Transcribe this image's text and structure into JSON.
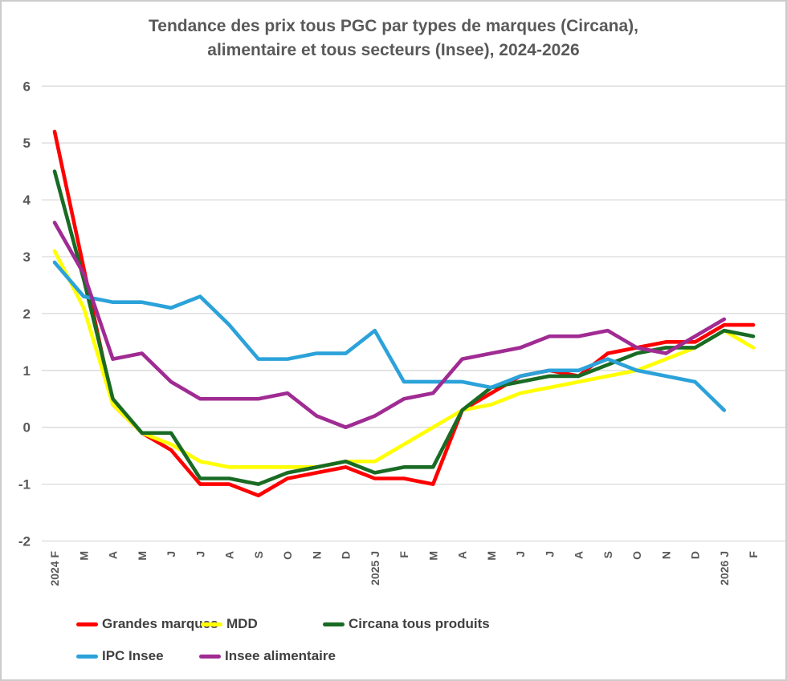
{
  "title": {
    "line1": "Tendance des prix tous PGC par types de marques (Circana),",
    "line2": "alimentaire et tous secteurs (Insee), 2024-2026"
  },
  "chart_data": {
    "type": "line",
    "x_labels": [
      "2024 F",
      "M",
      "A",
      "M",
      "J",
      "J",
      "A",
      "S",
      "O",
      "N",
      "D",
      "2025 J",
      "F",
      "M",
      "A",
      "M",
      "J",
      "J",
      "A",
      "S",
      "O",
      "N",
      "D",
      "2026 J",
      "F"
    ],
    "y_ticks": [
      6,
      5,
      4,
      3,
      2,
      1,
      0,
      -1,
      -2
    ],
    "ylim": [
      -2,
      6
    ],
    "grid": true,
    "legend_position": "bottom",
    "series": [
      {
        "name": "Grandes marques",
        "color": "#FF0000",
        "values": [
          5.2,
          2.8,
          0.4,
          -0.1,
          -0.4,
          -1.0,
          -1.0,
          -1.2,
          -0.9,
          -0.8,
          -0.7,
          -0.9,
          -0.9,
          -1.0,
          0.3,
          0.6,
          0.9,
          1.0,
          0.9,
          1.3,
          1.4,
          1.5,
          1.5,
          1.8,
          1.8
        ]
      },
      {
        "name": "MDD",
        "color": "#FFFF00",
        "values": [
          3.1,
          2.1,
          0.4,
          -0.1,
          -0.3,
          -0.6,
          -0.7,
          -0.7,
          -0.7,
          -0.7,
          -0.6,
          -0.6,
          -0.3,
          0.0,
          0.3,
          0.4,
          0.6,
          0.7,
          0.8,
          0.9,
          1.0,
          1.2,
          1.4,
          1.7,
          1.4
        ]
      },
      {
        "name": "Circana tous produits",
        "color": "#196B24",
        "values": [
          4.5,
          2.6,
          0.5,
          -0.1,
          -0.1,
          -0.9,
          -0.9,
          -1.0,
          -0.8,
          -0.7,
          -0.6,
          -0.8,
          -0.7,
          -0.7,
          0.3,
          0.7,
          0.8,
          0.9,
          0.9,
          1.1,
          1.3,
          1.4,
          1.4,
          1.7,
          1.6
        ]
      },
      {
        "name": "IPC Insee",
        "color": "#2BA2D9",
        "values": [
          2.9,
          2.3,
          2.2,
          2.2,
          2.1,
          2.3,
          1.8,
          1.2,
          1.2,
          1.3,
          1.3,
          1.7,
          0.8,
          0.8,
          0.8,
          0.7,
          0.9,
          1.0,
          1.0,
          1.2,
          1.0,
          0.9,
          0.8,
          0.3,
          null
        ]
      },
      {
        "name": "Insee alimentaire",
        "color": "#A02B93",
        "values": [
          3.6,
          2.7,
          1.2,
          1.3,
          0.8,
          0.5,
          0.5,
          0.5,
          0.6,
          0.2,
          0.0,
          0.2,
          0.5,
          0.6,
          1.2,
          1.3,
          1.4,
          1.6,
          1.6,
          1.7,
          1.4,
          1.3,
          1.6,
          1.9,
          null
        ]
      }
    ]
  },
  "styles": {
    "axis_text_color": "#595959",
    "grid_color": "#D9D9D9",
    "legend_text_color": "#404040",
    "background": "#FFFFFF"
  }
}
